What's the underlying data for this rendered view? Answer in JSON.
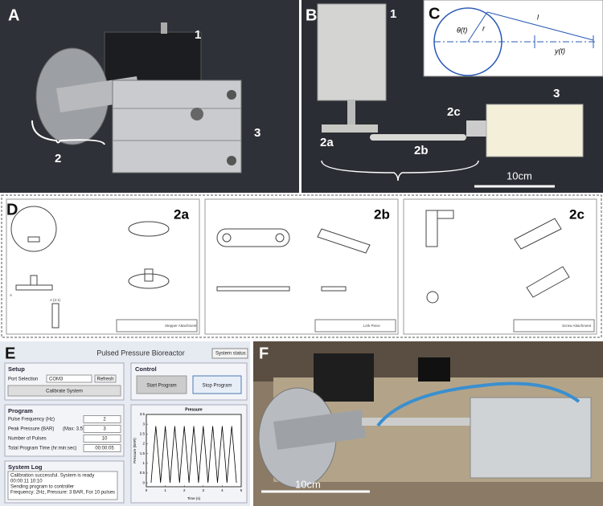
{
  "panels": {
    "a": {
      "label": "A",
      "callouts": [
        "1",
        "2",
        "3"
      ]
    },
    "b": {
      "label": "B",
      "callouts": [
        "1",
        "3",
        "2a",
        "2b",
        "2c"
      ],
      "scale": "10cm"
    },
    "c": {
      "label": "C",
      "symbols": [
        "θ(t)",
        "r",
        "l",
        "y(t)"
      ]
    },
    "d": {
      "label": "D",
      "sheets": [
        {
          "label": "2a",
          "title": "Stepper Attachment",
          "detail": "A (2:1)",
          "view": "A"
        },
        {
          "label": "2b",
          "title": "Link Piece"
        },
        {
          "label": "2c",
          "title": "Screw Attachment"
        }
      ]
    },
    "e": {
      "label": "E",
      "title": "Pulsed Pressure Bioreactor",
      "status": "System status",
      "setup": {
        "heading": "Setup",
        "port_label": "Port Selection",
        "port": "COM3",
        "refresh": "Refresh",
        "calibrate": "Calibrate System"
      },
      "control": {
        "heading": "Control",
        "start": "Start Program",
        "stop": "Stop Program"
      },
      "program": {
        "heading": "Program",
        "fields": [
          {
            "label": "Pulse Frequency (Hz)",
            "value": "2"
          },
          {
            "label": "Peak Pressure (BAR)",
            "note": "(Max: 3.57)",
            "value": "3"
          },
          {
            "label": "Number of Pulses",
            "value": "10"
          },
          {
            "label": "Total Program Time (hr:min:sec)",
            "value": "00:00:05"
          }
        ]
      },
      "log": {
        "heading": "System Log",
        "lines": [
          "Calibration successful. System is ready",
          "00:00:11 10:10",
          "Sending program to controller",
          "Frequency: 2Hz, Pressure: 3 BAR, For 10 pulses"
        ]
      },
      "chart_data": {
        "type": "line",
        "title": "Pressure",
        "x_label": "Time (s)",
        "y_label": "Pressure (BAR)",
        "color": "#000000",
        "xlim": [
          0,
          5
        ],
        "xticks": [
          0,
          1,
          2,
          3,
          4,
          5
        ],
        "ylim": [
          -0.2,
          3.5
        ],
        "yticks": [
          0,
          0.5,
          1,
          1.5,
          2,
          2.5,
          3,
          3.5
        ],
        "x": [
          0.25,
          0.375,
          0.5,
          0.625,
          0.75,
          0.875,
          1,
          1.125,
          1.25,
          1.375,
          1.5,
          1.625,
          1.75,
          1.875,
          2,
          2.125,
          2.25,
          2.375,
          2.5,
          2.625,
          2.75,
          2.875,
          3,
          3.125,
          3.25,
          3.375,
          3.5,
          3.625,
          3.75,
          3.875,
          4,
          4.125,
          4.25,
          4.375,
          4.5,
          4.625,
          4.75
        ],
        "values": [
          0,
          1.5,
          2.9,
          1.5,
          0,
          1.5,
          2.9,
          1.5,
          0,
          1.5,
          2.9,
          1.5,
          0,
          1.5,
          2.9,
          1.5,
          0,
          1.5,
          2.9,
          1.5,
          0,
          1.5,
          2.9,
          1.5,
          0,
          1.5,
          2.9,
          1.5,
          0,
          1.5,
          2.9,
          1.5,
          0,
          1.5,
          2.9,
          1.5,
          0
        ]
      }
    },
    "f": {
      "label": "F",
      "scale": "10cm"
    }
  }
}
